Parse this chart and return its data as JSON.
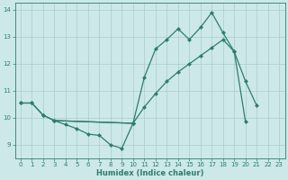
{
  "xlabel": "Humidex (Indice chaleur)",
  "bg_color": "#cce8e8",
  "grid_color": "#aacccc",
  "line_color": "#2e7d6e",
  "xlim": [
    -0.5,
    23.5
  ],
  "ylim": [
    8.5,
    14.25
  ],
  "xticks": [
    0,
    1,
    2,
    3,
    4,
    5,
    6,
    7,
    8,
    9,
    10,
    11,
    12,
    13,
    14,
    15,
    16,
    17,
    18,
    19,
    20,
    21,
    22,
    23
  ],
  "yticks": [
    9,
    10,
    11,
    12,
    13,
    14
  ],
  "lineA_x": [
    0,
    1,
    2,
    3,
    4,
    5,
    6,
    7,
    8,
    9,
    10
  ],
  "lineA_y": [
    10.55,
    10.55,
    10.1,
    9.9,
    9.75,
    9.6,
    9.4,
    9.35,
    9.0,
    8.87,
    9.8
  ],
  "lineB_x": [
    0,
    1,
    2,
    3,
    10,
    11,
    12,
    13,
    14,
    15,
    16,
    17,
    18,
    19,
    20
  ],
  "lineB_y": [
    10.55,
    10.55,
    10.1,
    9.9,
    9.8,
    10.4,
    10.9,
    11.35,
    11.7,
    12.0,
    12.3,
    12.6,
    12.9,
    12.45,
    9.85
  ],
  "lineC_x": [
    3,
    10,
    11,
    12,
    13,
    14,
    15,
    16,
    17,
    18,
    19,
    20,
    21
  ],
  "lineC_y": [
    9.9,
    9.8,
    11.5,
    12.55,
    12.9,
    13.3,
    12.9,
    13.35,
    13.9,
    13.15,
    12.45,
    11.35,
    10.45
  ]
}
